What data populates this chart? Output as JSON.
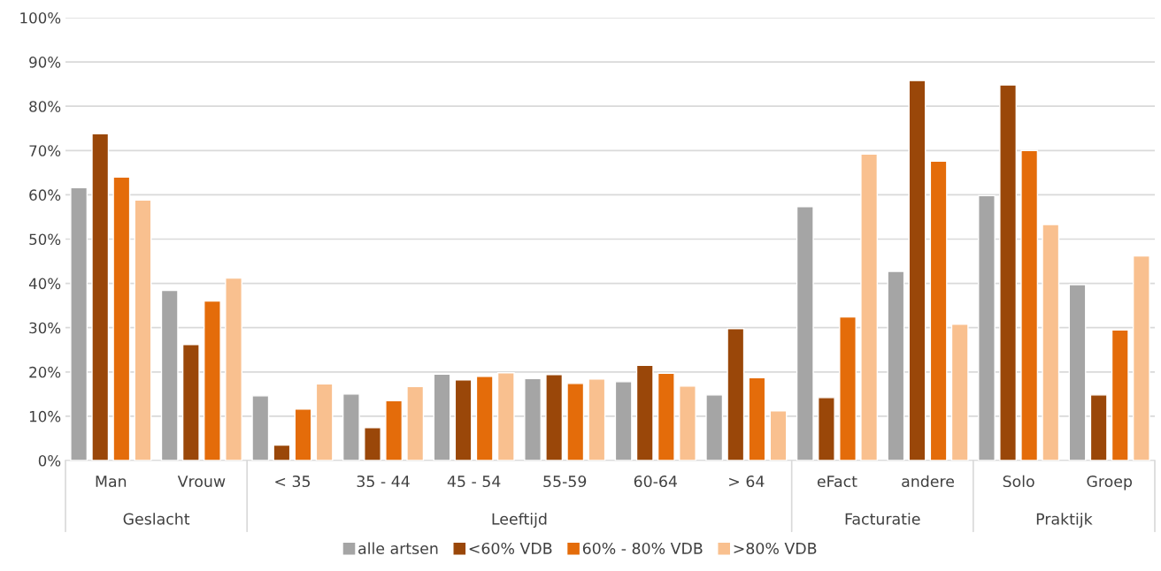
{
  "chart_data": {
    "type": "bar",
    "categories": [
      "Man",
      "Vrouw",
      "< 35",
      "35 - 44",
      "45 - 54",
      "55-59",
      "60-64",
      "> 64",
      "eFact",
      "andere",
      "Solo",
      "Groep"
    ],
    "series": [
      {
        "name": "alle artsen",
        "color": "#a5a5a5",
        "values": [
          61.6,
          38.4,
          14.6,
          15,
          19.5,
          18.5,
          17.8,
          14.8,
          57.3,
          42.7,
          59.8,
          39.7
        ]
      },
      {
        "name": "<60% VDB",
        "color": "#9a4709",
        "values": [
          73.8,
          26.2,
          3.5,
          7.4,
          18.2,
          19.4,
          21.5,
          29.8,
          14.2,
          85.8,
          84.8,
          14.8
        ]
      },
      {
        "name": "60% - 80% VDB",
        "color": "#e46c0a",
        "values": [
          64,
          36,
          11.6,
          13.5,
          19,
          17.4,
          19.7,
          18.7,
          32.4,
          67.6,
          70,
          29.5
        ]
      },
      {
        "name": ">80% VDB",
        "color": "#f9c08f",
        "values": [
          58.8,
          41.2,
          17.3,
          16.7,
          19.8,
          18.4,
          16.8,
          11.2,
          69.2,
          30.8,
          53.3,
          46.2
        ]
      }
    ],
    "ylim": [
      0,
      100
    ],
    "yticks": [
      {
        "value": 0,
        "label": "0%"
      },
      {
        "value": 10,
        "label": "10%"
      },
      {
        "value": 20,
        "label": "20%"
      },
      {
        "value": 30,
        "label": "30%"
      },
      {
        "value": 40,
        "label": "40%"
      },
      {
        "value": 50,
        "label": "50%"
      },
      {
        "value": 60,
        "label": "60%"
      },
      {
        "value": 70,
        "label": "70%"
      },
      {
        "value": 80,
        "label": "80%"
      },
      {
        "value": 90,
        "label": "90%"
      },
      {
        "value": 100,
        "label": "100%"
      }
    ],
    "annotations": [
      "Geslacht",
      "Leeftijd",
      "Facturatie",
      "Praktijk"
    ],
    "grid": "y",
    "legend": "bottom"
  }
}
